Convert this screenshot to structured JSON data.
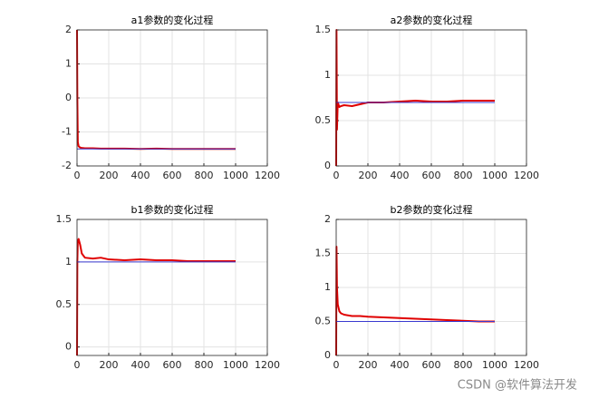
{
  "chart_data": [
    {
      "type": "line",
      "title": "a1参数的变化过程",
      "x": [
        0,
        2,
        5,
        10,
        20,
        30,
        50,
        100,
        150,
        200,
        300,
        400,
        500,
        600,
        700,
        800,
        900,
        1000
      ],
      "series": [
        {
          "color": "#e00000",
          "values": [
            2,
            0,
            -1.3,
            -1.42,
            -1.46,
            -1.47,
            -1.48,
            -1.48,
            -1.49,
            -1.49,
            -1.49,
            -1.5,
            -1.49,
            -1.5,
            -1.5,
            -1.5,
            -1.5,
            -1.5
          ]
        },
        {
          "color": "#3a3ad0",
          "values": [
            -1.5,
            -1.5,
            -1.5,
            -1.5,
            -1.5,
            -1.5,
            -1.5,
            -1.5,
            -1.5,
            -1.5,
            -1.5,
            -1.5,
            -1.5,
            -1.5,
            -1.5,
            -1.5,
            -1.5,
            -1.5
          ]
        }
      ],
      "xlim": [
        0,
        1200
      ],
      "xticks": [
        0,
        200,
        400,
        600,
        800,
        1000,
        1200
      ],
      "ylim": [
        -2,
        2
      ],
      "yticks": [
        -2,
        -1,
        0,
        1,
        2
      ],
      "grid": true
    },
    {
      "type": "line",
      "title": "a2参数的变化过程",
      "x": [
        0,
        2,
        5,
        10,
        20,
        30,
        50,
        100,
        150,
        200,
        300,
        400,
        500,
        600,
        700,
        800,
        900,
        1000
      ],
      "series": [
        {
          "color": "#e00000",
          "values": [
            0,
            1.5,
            0.4,
            0.7,
            0.65,
            0.66,
            0.67,
            0.66,
            0.68,
            0.7,
            0.7,
            0.71,
            0.72,
            0.71,
            0.71,
            0.72,
            0.72,
            0.72
          ]
        },
        {
          "color": "#3a3ad0",
          "values": [
            0.7,
            0.7,
            0.7,
            0.7,
            0.7,
            0.7,
            0.7,
            0.7,
            0.7,
            0.7,
            0.7,
            0.7,
            0.7,
            0.7,
            0.7,
            0.7,
            0.7,
            0.7
          ]
        }
      ],
      "xlim": [
        0,
        1200
      ],
      "xticks": [
        0,
        200,
        400,
        600,
        800,
        1000,
        1200
      ],
      "ylim": [
        0,
        1.5
      ],
      "yticks": [
        0,
        0.5,
        1,
        1.5
      ],
      "grid": true
    },
    {
      "type": "line",
      "title": "b1参数的变化过程",
      "x": [
        0,
        2,
        5,
        10,
        20,
        30,
        50,
        100,
        150,
        200,
        300,
        400,
        500,
        600,
        700,
        800,
        900,
        1000
      ],
      "series": [
        {
          "color": "#e00000",
          "values": [
            -0.1,
            1.0,
            1.25,
            1.27,
            1.2,
            1.1,
            1.05,
            1.04,
            1.05,
            1.03,
            1.02,
            1.03,
            1.02,
            1.02,
            1.01,
            1.01,
            1.01,
            1.01
          ]
        },
        {
          "color": "#3a3ad0",
          "values": [
            1,
            1,
            1,
            1,
            1,
            1,
            1,
            1,
            1,
            1,
            1,
            1,
            1,
            1,
            1,
            1,
            1,
            1
          ]
        }
      ],
      "xlim": [
        0,
        1200
      ],
      "xticks": [
        0,
        200,
        400,
        600,
        800,
        1000,
        1200
      ],
      "ylim": [
        -0.1,
        1.5
      ],
      "yticks": [
        0,
        0.5,
        1,
        1.5
      ],
      "grid": true
    },
    {
      "type": "line",
      "title": "b2参数的变化过程",
      "x": [
        0,
        2,
        5,
        10,
        20,
        30,
        50,
        100,
        150,
        200,
        300,
        400,
        500,
        600,
        700,
        800,
        900,
        1000
      ],
      "series": [
        {
          "color": "#e00000",
          "values": [
            0,
            1.6,
            1.0,
            0.75,
            0.65,
            0.62,
            0.6,
            0.58,
            0.58,
            0.57,
            0.56,
            0.55,
            0.54,
            0.53,
            0.52,
            0.51,
            0.5,
            0.5
          ]
        },
        {
          "color": "#3a3ad0",
          "values": [
            0.5,
            0.5,
            0.5,
            0.5,
            0.5,
            0.5,
            0.5,
            0.5,
            0.5,
            0.5,
            0.5,
            0.5,
            0.5,
            0.5,
            0.5,
            0.5,
            0.5,
            0.5
          ]
        }
      ],
      "xlim": [
        0,
        1200
      ],
      "xticks": [
        0,
        200,
        400,
        600,
        800,
        1000,
        1200
      ],
      "ylim": [
        0,
        2
      ],
      "yticks": [
        0,
        0.5,
        1,
        1.5,
        2
      ],
      "grid": true
    }
  ],
  "watermark": "CSDN @软件算法开发"
}
